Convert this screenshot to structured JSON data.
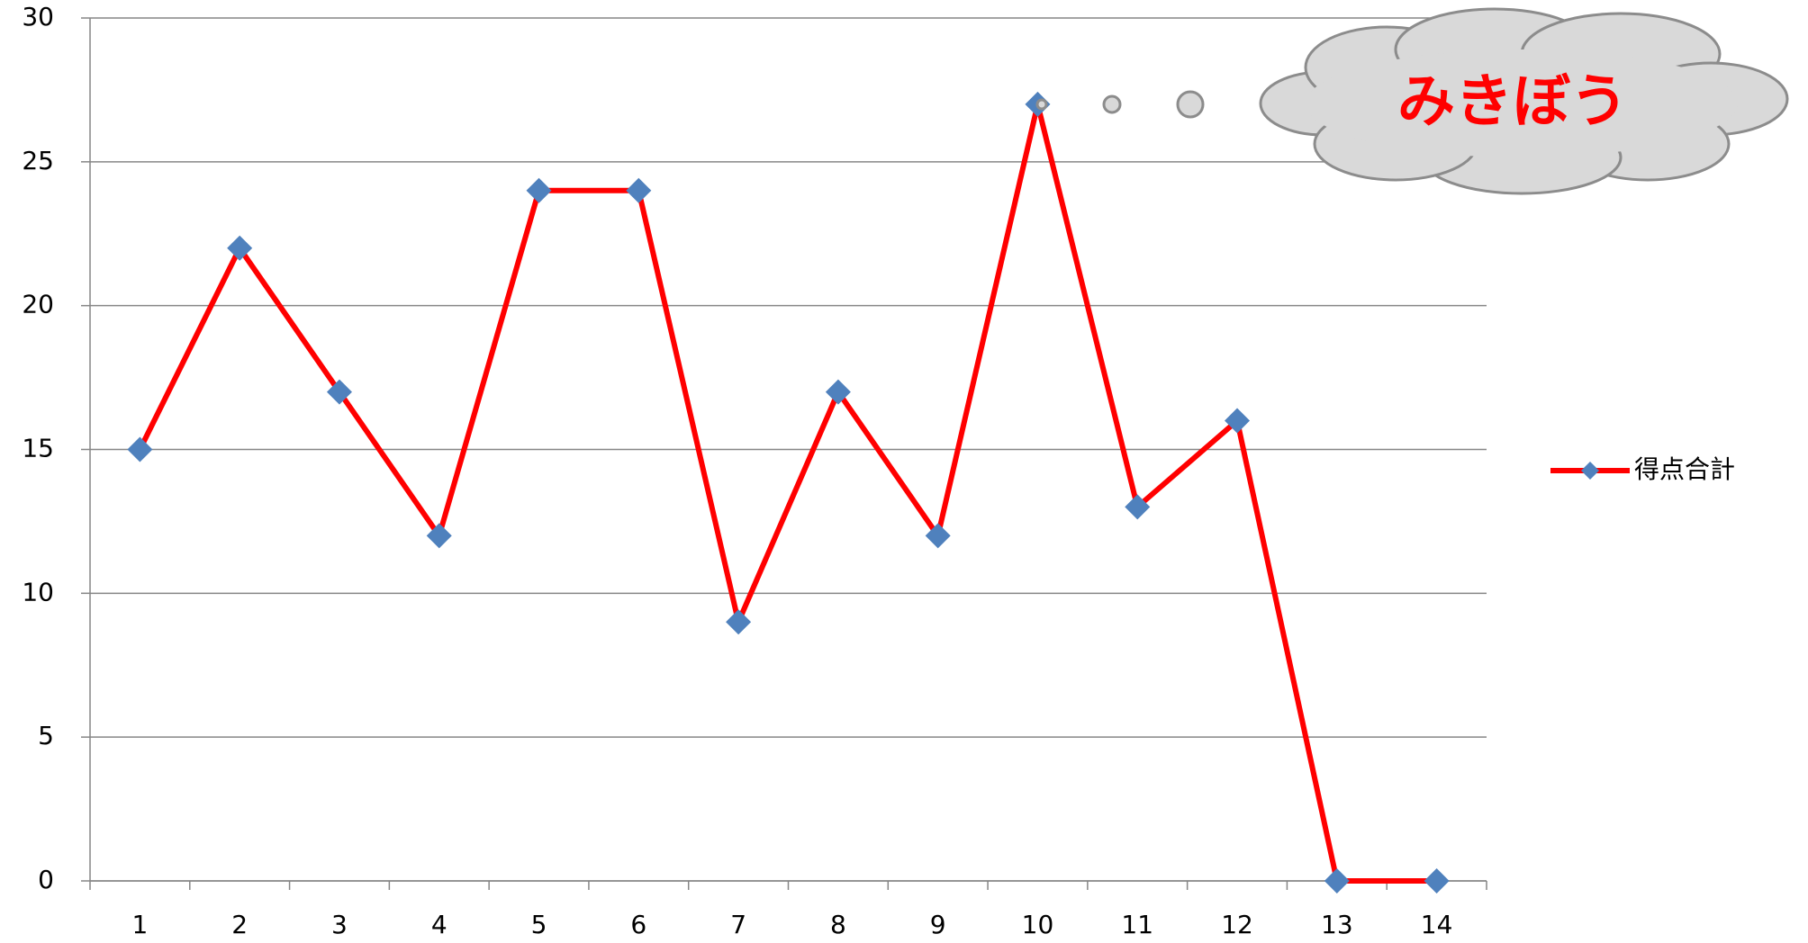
{
  "chart_data": {
    "type": "line",
    "categories": [
      "1",
      "2",
      "3",
      "4",
      "5",
      "6",
      "7",
      "8",
      "9",
      "10",
      "11",
      "12",
      "13",
      "14"
    ],
    "series": [
      {
        "name": "得点合計",
        "color": "#ff0000",
        "marker_color": "#4f81bd",
        "values": [
          15,
          22,
          17,
          12,
          24,
          24,
          9,
          17,
          12,
          27,
          13,
          16,
          0,
          0
        ]
      }
    ],
    "ylim": [
      0,
      30
    ],
    "yticks": [
      0,
      5,
      10,
      15,
      20,
      25,
      30
    ],
    "grid": true,
    "legend": "right",
    "annotation": "みきぼう"
  }
}
